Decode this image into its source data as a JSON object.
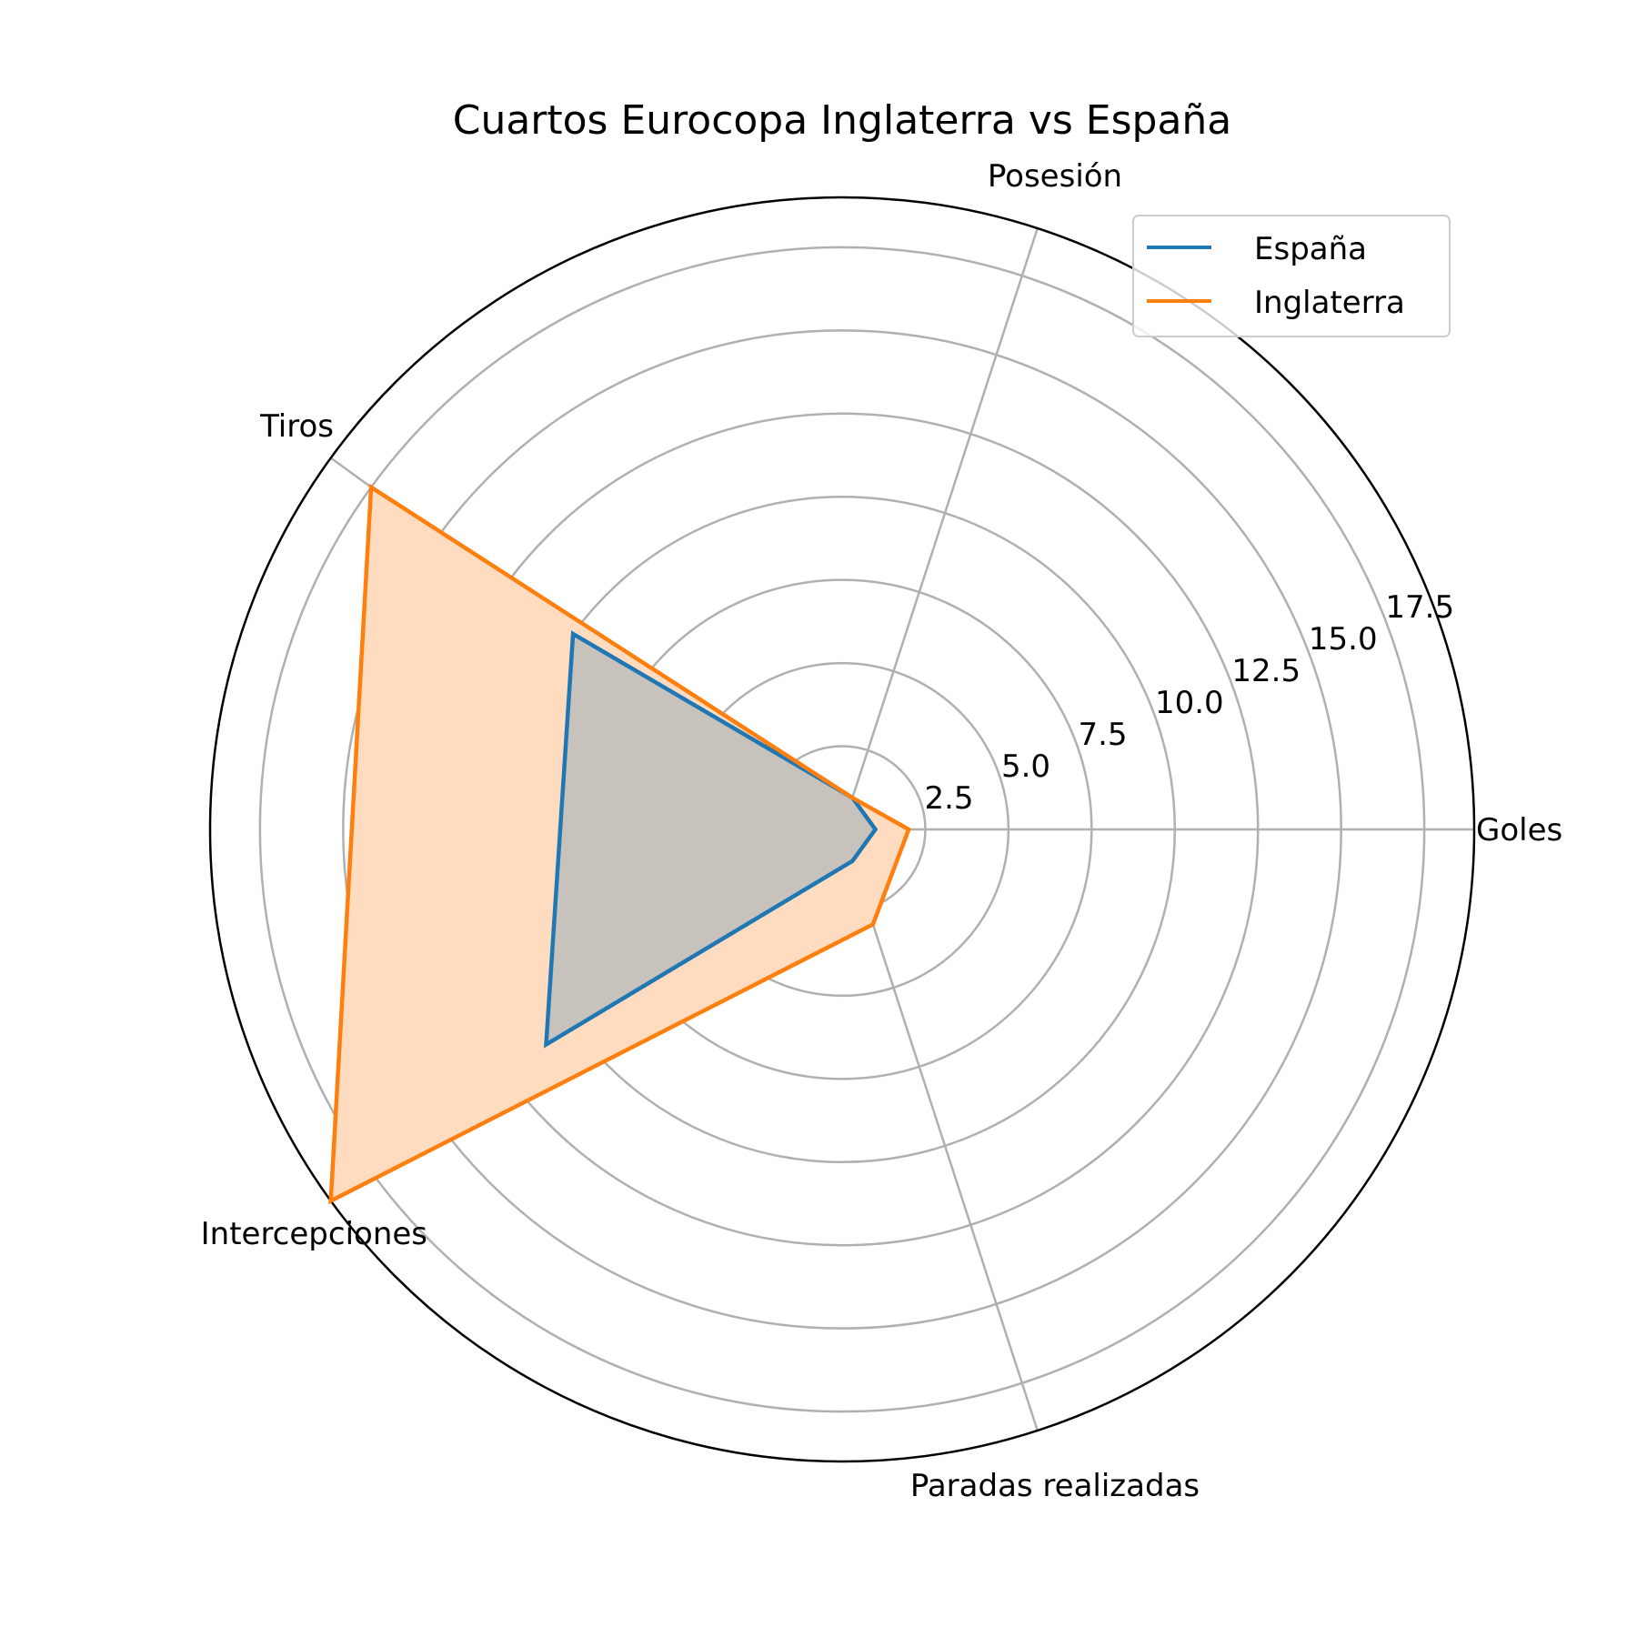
{
  "chart_data": {
    "type": "radar",
    "title": "Cuartos Eurocopa Inglaterra vs España",
    "categories": [
      "Goles",
      "Posesión",
      "Tiros",
      "Intercepciones",
      "Paradas realizadas"
    ],
    "rticks": [
      "2.5",
      "5.0",
      "7.5",
      "10.0",
      "12.5",
      "15.0",
      "17.5"
    ],
    "rtick_values": [
      2.5,
      5.0,
      7.5,
      10.0,
      12.5,
      15.0,
      17.5
    ],
    "rlim": [
      0,
      19
    ],
    "grid": true,
    "legend_position": "top-right",
    "series": [
      {
        "name": "España",
        "color": "#1f77b4",
        "values": [
          1,
          1,
          10,
          11,
          1
        ],
        "fill": false
      },
      {
        "name": "Inglaterra",
        "color": "#ff7f0e",
        "values": [
          2,
          1,
          17.5,
          19,
          3
        ],
        "fill": true,
        "fill_color": "#ffdcbf"
      }
    ]
  }
}
